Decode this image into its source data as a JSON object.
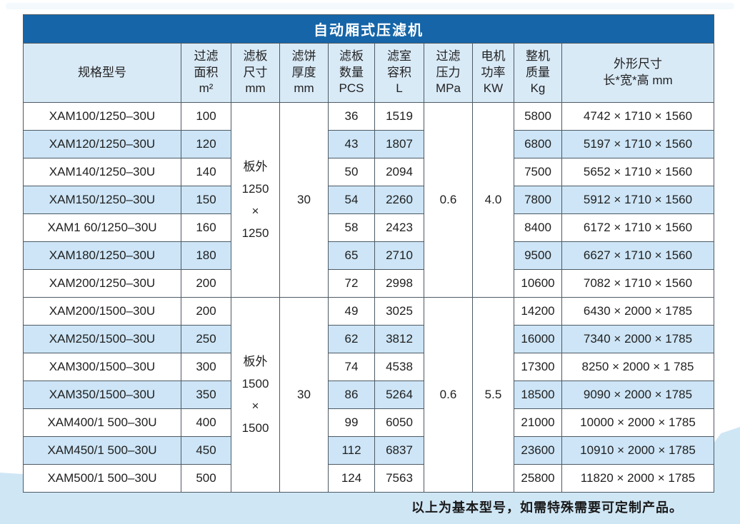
{
  "page": {
    "title": "自动厢式压滤机",
    "footer_note": "以上为基本型号，如需特殊需要可定制产品。",
    "colors": {
      "title_bar": "#1565a8",
      "header_bg": "#d9eaf7",
      "stripe_bg": "#cde5f6",
      "wave_bg": "#cfe6f5",
      "border": "#4d5a64"
    }
  },
  "table": {
    "columns": [
      {
        "id": "model",
        "label_lines": [
          "规格型号"
        ]
      },
      {
        "id": "filter-area",
        "label_lines": [
          "过滤",
          "面积",
          "m²"
        ]
      },
      {
        "id": "plate-size",
        "label_lines": [
          "滤板",
          "尺寸",
          "mm"
        ]
      },
      {
        "id": "cake-thickness",
        "label_lines": [
          "滤饼",
          "厚度",
          "mm"
        ]
      },
      {
        "id": "plate-count",
        "label_lines": [
          "滤板",
          "数量",
          "PCS"
        ]
      },
      {
        "id": "chamber-volume",
        "label_lines": [
          "滤室",
          "容积",
          "L"
        ]
      },
      {
        "id": "filter-pressure",
        "label_lines": [
          "过滤",
          "压力",
          "MPa"
        ]
      },
      {
        "id": "motor-power",
        "label_lines": [
          "电机",
          "功率",
          "KW"
        ]
      },
      {
        "id": "machine-weight",
        "label_lines": [
          "整机",
          "质量",
          "Kg"
        ]
      },
      {
        "id": "dimensions",
        "label_lines": [
          "外形尺寸",
          "长*宽*高 mm"
        ]
      }
    ],
    "groups": [
      {
        "plate_size_lines": [
          "板外",
          "1250",
          "×",
          "1250"
        ],
        "cake_thickness": "30",
        "pressure": "0.6",
        "power": "4.0",
        "rows": [
          {
            "model": "XAM100/1250–30U",
            "area": "100",
            "pcs": "36",
            "volume": "1519",
            "weight": "5800",
            "dims": "4742 × 1710 × 1560"
          },
          {
            "model": "XAM120/1250–30U",
            "area": "120",
            "pcs": "43",
            "volume": "1807",
            "weight": "6800",
            "dims": "5197  × 1710 × 1560"
          },
          {
            "model": "XAM140/1250–30U",
            "area": "140",
            "pcs": "50",
            "volume": "2094",
            "weight": "7500",
            "dims": "5652 × 1710 × 1560"
          },
          {
            "model": "XAM150/1250–30U",
            "area": "150",
            "pcs": "54",
            "volume": "2260",
            "weight": "7800",
            "dims": "5912 × 1710 × 1560"
          },
          {
            "model": "XAM1 60/1250–30U",
            "area": "160",
            "pcs": "58",
            "volume": "2423",
            "weight": "8400",
            "dims": "6172 × 1710 × 1560"
          },
          {
            "model": "XAM180/1250–30U",
            "area": "180",
            "pcs": "65",
            "volume": "2710",
            "weight": "9500",
            "dims": "6627 × 1710 × 1560"
          },
          {
            "model": "XAM200/1250–30U",
            "area": "200",
            "pcs": "72",
            "volume": "2998",
            "weight": "10600",
            "dims": "7082 × 1710 × 1560"
          }
        ]
      },
      {
        "plate_size_lines": [
          "板外",
          "1500",
          "×",
          "1500"
        ],
        "cake_thickness": "30",
        "pressure": "0.6",
        "power": "5.5",
        "rows": [
          {
            "model": "XAM200/1500–30U",
            "area": "200",
            "pcs": "49",
            "volume": "3025",
            "weight": "14200",
            "dims": "6430 × 2000 × 1785"
          },
          {
            "model": "XAM250/1500–30U",
            "area": "250",
            "pcs": "62",
            "volume": "3812",
            "weight": "16000",
            "dims": "7340 × 2000 × 1785"
          },
          {
            "model": "XAM300/1500–30U",
            "area": "300",
            "pcs": "74",
            "volume": "4538",
            "weight": "17300",
            "dims": "8250 ×  2000 × 1 785"
          },
          {
            "model": "XAM350/1500–30U",
            "area": "350",
            "pcs": "86",
            "volume": "5264",
            "weight": "18500",
            "dims": "9090 × 2000 ×  1785"
          },
          {
            "model": "XAM400/1 500–30U",
            "area": "400",
            "pcs": "99",
            "volume": "6050",
            "weight": "21000",
            "dims": "10000 × 2000 × 1785"
          },
          {
            "model": "XAM450/1 500–30U",
            "area": "450",
            "pcs": "112",
            "volume": "6837",
            "weight": "23600",
            "dims": "10910 × 2000 × 1785"
          },
          {
            "model": "XAM500/1 500–30U",
            "area": "500",
            "pcs": "124",
            "volume": "7563",
            "weight": "25800",
            "dims": "11820 × 2000 × 1785"
          }
        ]
      }
    ]
  }
}
